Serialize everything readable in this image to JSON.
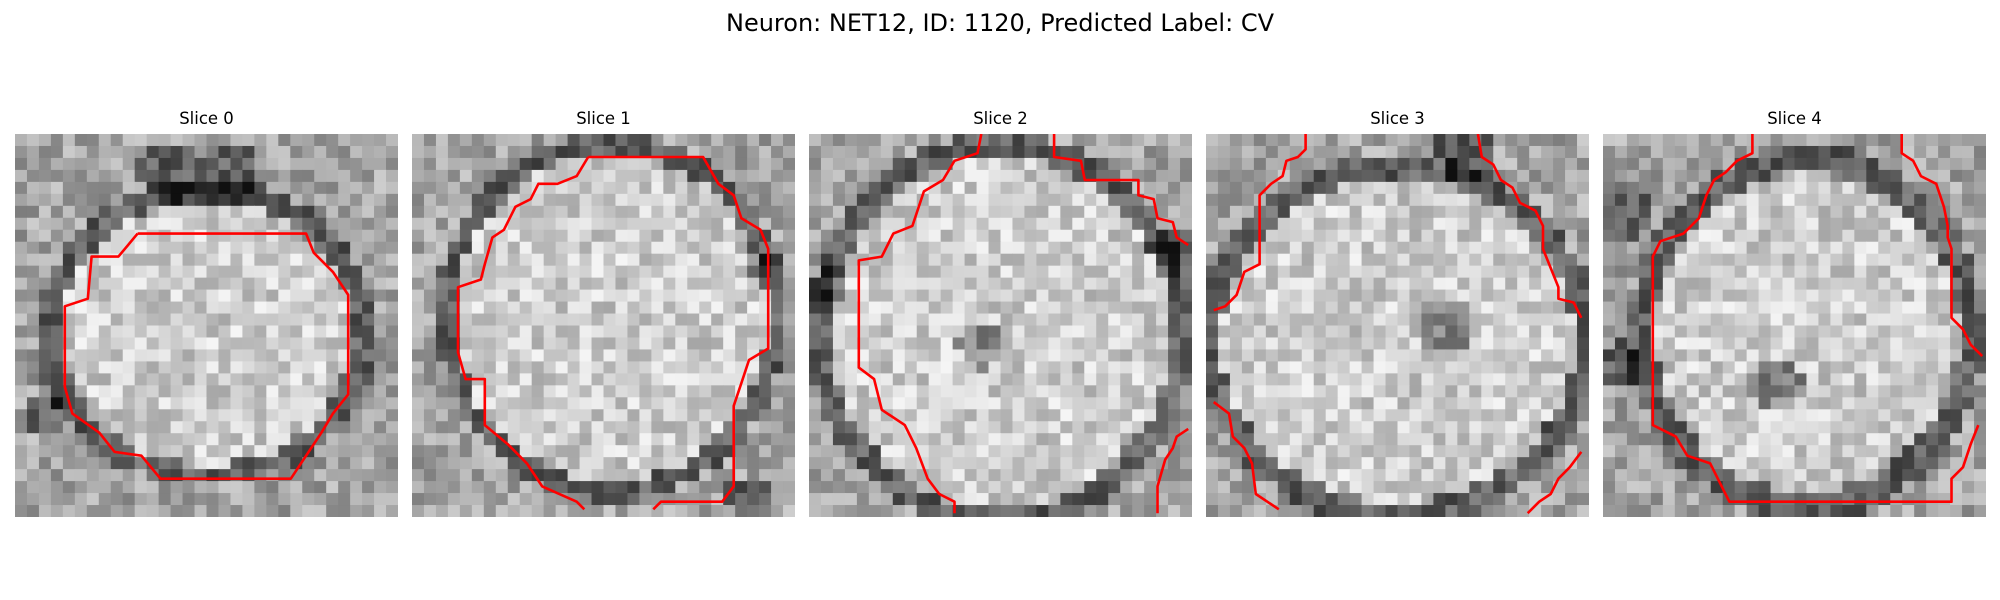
{
  "figure": {
    "title": "Neuron: NET12, ID: 1120, Predicted Label: CV"
  },
  "panels": [
    {
      "title": "Slice 0"
    },
    {
      "title": "Slice 1"
    },
    {
      "title": "Slice 2"
    },
    {
      "title": "Slice 3"
    },
    {
      "title": "Slice 4"
    }
  ],
  "colors": {
    "contour": "#ff0000"
  },
  "image_description": {
    "content": "grayscale microscopy slices of a neuron cross-section with red segmentation contours",
    "grid_size": "32x32 pixel tiles"
  }
}
